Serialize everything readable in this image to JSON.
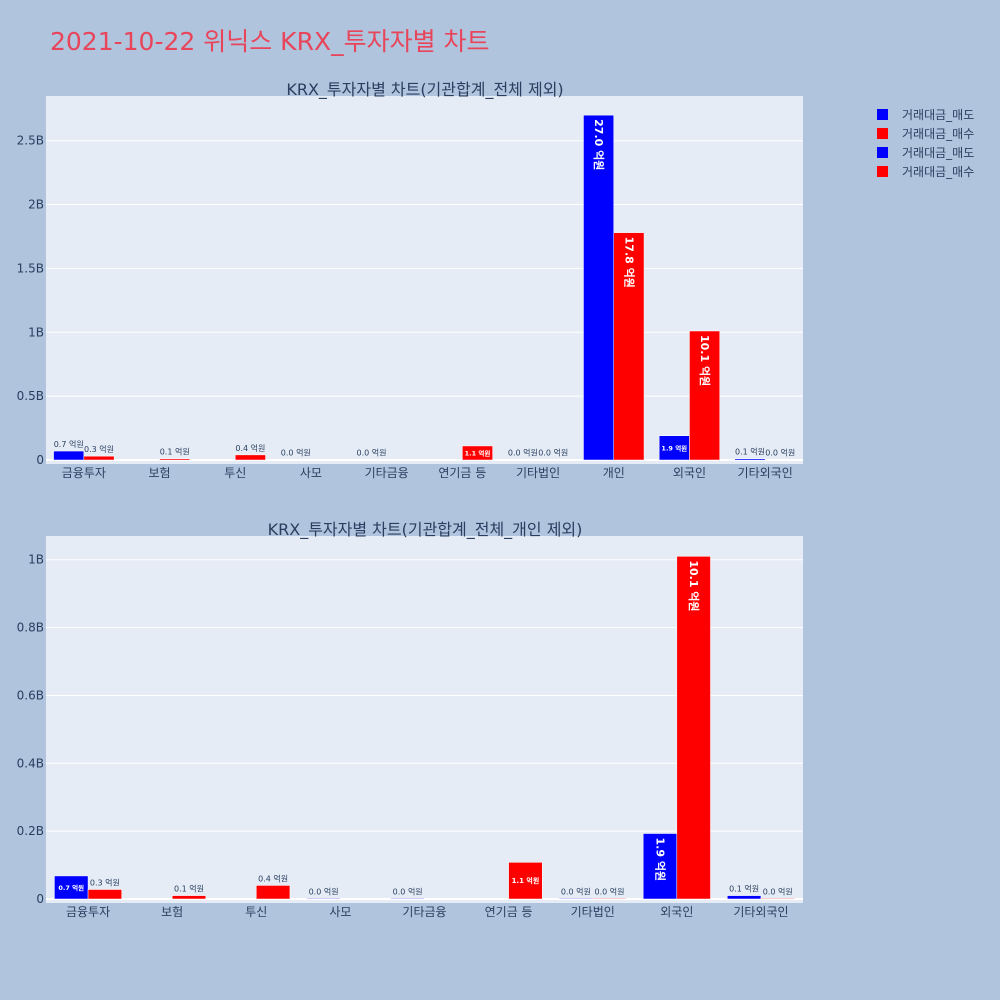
{
  "page_title": "2021-10-22 위닉스 KRX_투자자별 차트",
  "legend": [
    {
      "label": "거래대금_매도",
      "color": "#0000ff"
    },
    {
      "label": "거래대금_매수",
      "color": "#ff0000"
    },
    {
      "label": "거래대금_매도",
      "color": "#0000ff"
    },
    {
      "label": "거래대금_매수",
      "color": "#ff0000"
    }
  ],
  "colors": {
    "sell": "#0000ff",
    "buy": "#ff0000",
    "plot_bg": "#e5ecf6",
    "page_bg": "#b0c4de"
  },
  "chart_data": [
    {
      "type": "bar",
      "title": "KRX_투자자별 차트(기관합계_전체 제외)",
      "categories": [
        "금융투자",
        "보험",
        "투신",
        "사모",
        "기타금융",
        "연기금 등",
        "기타법인",
        "개인",
        "외국인",
        "기타외국인"
      ],
      "yticks": [
        {
          "value": 0,
          "label": "0"
        },
        {
          "value": 500000000,
          "label": "0.5B"
        },
        {
          "value": 1000000000,
          "label": "1B"
        },
        {
          "value": 1500000000,
          "label": "1.5B"
        },
        {
          "value": 2000000000,
          "label": "2B"
        },
        {
          "value": 2500000000,
          "label": "2.5B"
        }
      ],
      "ylim": [
        0,
        2850000000
      ],
      "series": [
        {
          "name": "거래대금_매도",
          "color": "#0000ff",
          "values": [
            70000000,
            0,
            0,
            2000000,
            2000000,
            0,
            2000000,
            2700000000,
            190000000,
            10000000
          ],
          "labels": [
            "0.7 억원",
            "",
            "",
            "0.0 억원",
            "0.0 억원",
            "",
            "0.0 억원",
            "27.0 억원",
            "1.9 억원",
            "0.1 억원"
          ]
        },
        {
          "name": "거래대금_매수",
          "color": "#ff0000",
          "values": [
            30000000,
            10000000,
            40000000,
            0,
            0,
            110000000,
            2000000,
            1780000000,
            1010000000,
            2000000
          ],
          "labels": [
            "0.3 억원",
            "0.1 억원",
            "0.4 억원",
            "",
            "",
            "1.1 억원",
            "0.0 억원",
            "17.8 억원",
            "10.1 억원",
            "0.0 억원"
          ]
        }
      ]
    },
    {
      "type": "bar",
      "title": "KRX_투자자별 차트(기관합계_전체_개인 제외)",
      "categories": [
        "금융투자",
        "보험",
        "투신",
        "사모",
        "기타금융",
        "연기금 등",
        "기타법인",
        "외국인",
        "기타외국인"
      ],
      "yticks": [
        {
          "value": 0,
          "label": "0"
        },
        {
          "value": 200000000,
          "label": "0.2B"
        },
        {
          "value": 400000000,
          "label": "0.4B"
        },
        {
          "value": 600000000,
          "label": "0.6B"
        },
        {
          "value": 800000000,
          "label": "0.8B"
        },
        {
          "value": 1000000000,
          "label": "1B"
        }
      ],
      "ylim": [
        0,
        1070000000
      ],
      "series": [
        {
          "name": "거래대금_매도",
          "color": "#0000ff",
          "values": [
            68000000,
            0,
            0,
            2000000,
            2000000,
            0,
            2000000,
            193000000,
            10000000
          ],
          "labels": [
            "0.7 억원",
            "",
            "",
            "0.0 억원",
            "0.0 억원",
            "",
            "0.0 억원",
            "1.9 억원",
            "0.1 억원"
          ]
        },
        {
          "name": "거래대금_매수",
          "color": "#ff0000",
          "values": [
            28000000,
            10000000,
            40000000,
            0,
            0,
            108000000,
            2000000,
            1010000000,
            2000000
          ],
          "labels": [
            "0.3 억원",
            "0.1 억원",
            "0.4 억원",
            "",
            "",
            "1.1 억원",
            "0.0 억원",
            "10.1 억원",
            "0.0 억원"
          ]
        }
      ]
    }
  ]
}
